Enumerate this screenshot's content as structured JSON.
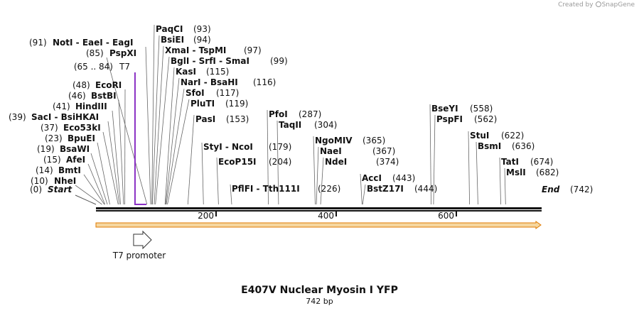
{
  "watermark": {
    "created_by": "Created by",
    "brand": "SnapGene"
  },
  "plasmid": {
    "name": "E407V Nuclear Myosin I YFP",
    "length_label": "742 bp",
    "length": 742
  },
  "colors": {
    "accent": "#8a2fc4",
    "feature_fill": "#f5d7a0",
    "feature_border": "#e07a00",
    "backbone": "#111111"
  },
  "scale": {
    "ticks": [
      200,
      400,
      600
    ],
    "tick_labels": [
      "200",
      "400",
      "600"
    ]
  },
  "start_label": {
    "pos_text": "(0)",
    "name": "Start",
    "pos": 0
  },
  "end_label": {
    "name": "End",
    "pos_text": "(742)",
    "pos": 742
  },
  "sites": [
    {
      "name": "NheI",
      "pos": 10,
      "pos_text": "(10)",
      "side": "left"
    },
    {
      "name": "BmtI",
      "pos": 14,
      "pos_text": "(14)",
      "side": "left"
    },
    {
      "name": "AfeI",
      "pos": 15,
      "pos_text": "(15)",
      "side": "left"
    },
    {
      "name": "BsaWI",
      "pos": 19,
      "pos_text": "(19)",
      "side": "left"
    },
    {
      "name": "BpuEI",
      "pos": 23,
      "pos_text": "(23)",
      "side": "left"
    },
    {
      "name": "Eco53kI",
      "pos": 37,
      "pos_text": "(37)",
      "side": "left"
    },
    {
      "name": "SacI  - BsiHKAI",
      "pos": 39,
      "pos_text": "(39)",
      "side": "left"
    },
    {
      "name": "HindIII",
      "pos": 41,
      "pos_text": "(41)",
      "side": "left"
    },
    {
      "name": "BstBI",
      "pos": 46,
      "pos_text": "(46)",
      "side": "left"
    },
    {
      "name": "EcoRI",
      "pos": 48,
      "pos_text": "(48)",
      "side": "left"
    },
    {
      "name": "PspXI",
      "pos": 85,
      "pos_text": "(85)",
      "side": "left"
    },
    {
      "name": "NotI  - EaeI  - EagI",
      "pos": 91,
      "pos_text": "(91)",
      "side": "left"
    },
    {
      "name": "PaqCI",
      "pos": 93,
      "pos_text": "(93)",
      "side": "right"
    },
    {
      "name": "BsiEI",
      "pos": 94,
      "pos_text": "(94)",
      "side": "right"
    },
    {
      "name": "XmaI  - TspMI",
      "pos": 97,
      "pos_text": "(97)",
      "side": "right"
    },
    {
      "name": "BglI  - SrfI  - SmaI",
      "pos": 99,
      "pos_text": "(99)",
      "side": "right"
    },
    {
      "name": "KasI",
      "pos": 115,
      "pos_text": "(115)",
      "side": "right"
    },
    {
      "name": "NarI  - BsaHI",
      "pos": 116,
      "pos_text": "(116)",
      "side": "right"
    },
    {
      "name": "SfoI",
      "pos": 117,
      "pos_text": "(117)",
      "side": "right"
    },
    {
      "name": "PluTI",
      "pos": 119,
      "pos_text": "(119)",
      "side": "right"
    },
    {
      "name": "PasI",
      "pos": 153,
      "pos_text": "(153)",
      "side": "right"
    },
    {
      "name": "StyI  - NcoI",
      "pos": 179,
      "pos_text": "(179)",
      "side": "right"
    },
    {
      "name": "EcoP15I",
      "pos": 204,
      "pos_text": "(204)",
      "side": "right"
    },
    {
      "name": "PflFI  - Tth111I",
      "pos": 226,
      "pos_text": "(226)",
      "side": "right"
    },
    {
      "name": "PfoI",
      "pos": 287,
      "pos_text": "(287)",
      "side": "right"
    },
    {
      "name": "TaqII",
      "pos": 304,
      "pos_text": "(304)",
      "side": "right"
    },
    {
      "name": "NgoMIV",
      "pos": 365,
      "pos_text": "(365)",
      "side": "right"
    },
    {
      "name": "NaeI",
      "pos": 367,
      "pos_text": "(367)",
      "side": "right"
    },
    {
      "name": "NdeI",
      "pos": 374,
      "pos_text": "(374)",
      "side": "right"
    },
    {
      "name": "AccI",
      "pos": 443,
      "pos_text": "(443)",
      "side": "right"
    },
    {
      "name": "BstZ17I",
      "pos": 444,
      "pos_text": "(444)",
      "side": "right"
    },
    {
      "name": "BseYI",
      "pos": 558,
      "pos_text": "(558)",
      "side": "right"
    },
    {
      "name": "PspFI",
      "pos": 562,
      "pos_text": "(562)",
      "side": "right"
    },
    {
      "name": "StuI",
      "pos": 622,
      "pos_text": "(622)",
      "side": "right"
    },
    {
      "name": "BsmI",
      "pos": 636,
      "pos_text": "(636)",
      "side": "right"
    },
    {
      "name": "TatI",
      "pos": 674,
      "pos_text": "(674)",
      "side": "right"
    },
    {
      "name": "MslI",
      "pos": 682,
      "pos_text": "(682)",
      "side": "right"
    }
  ],
  "primer_binding": {
    "range_text": "(65 .. 84)",
    "name": "T7",
    "start": 65,
    "end": 84
  },
  "features": [
    {
      "name": "T7 promoter",
      "start": 65,
      "end": 84,
      "direction": "forward"
    }
  ],
  "full_feature": {
    "start": 0,
    "end": 742,
    "direction": "forward"
  }
}
